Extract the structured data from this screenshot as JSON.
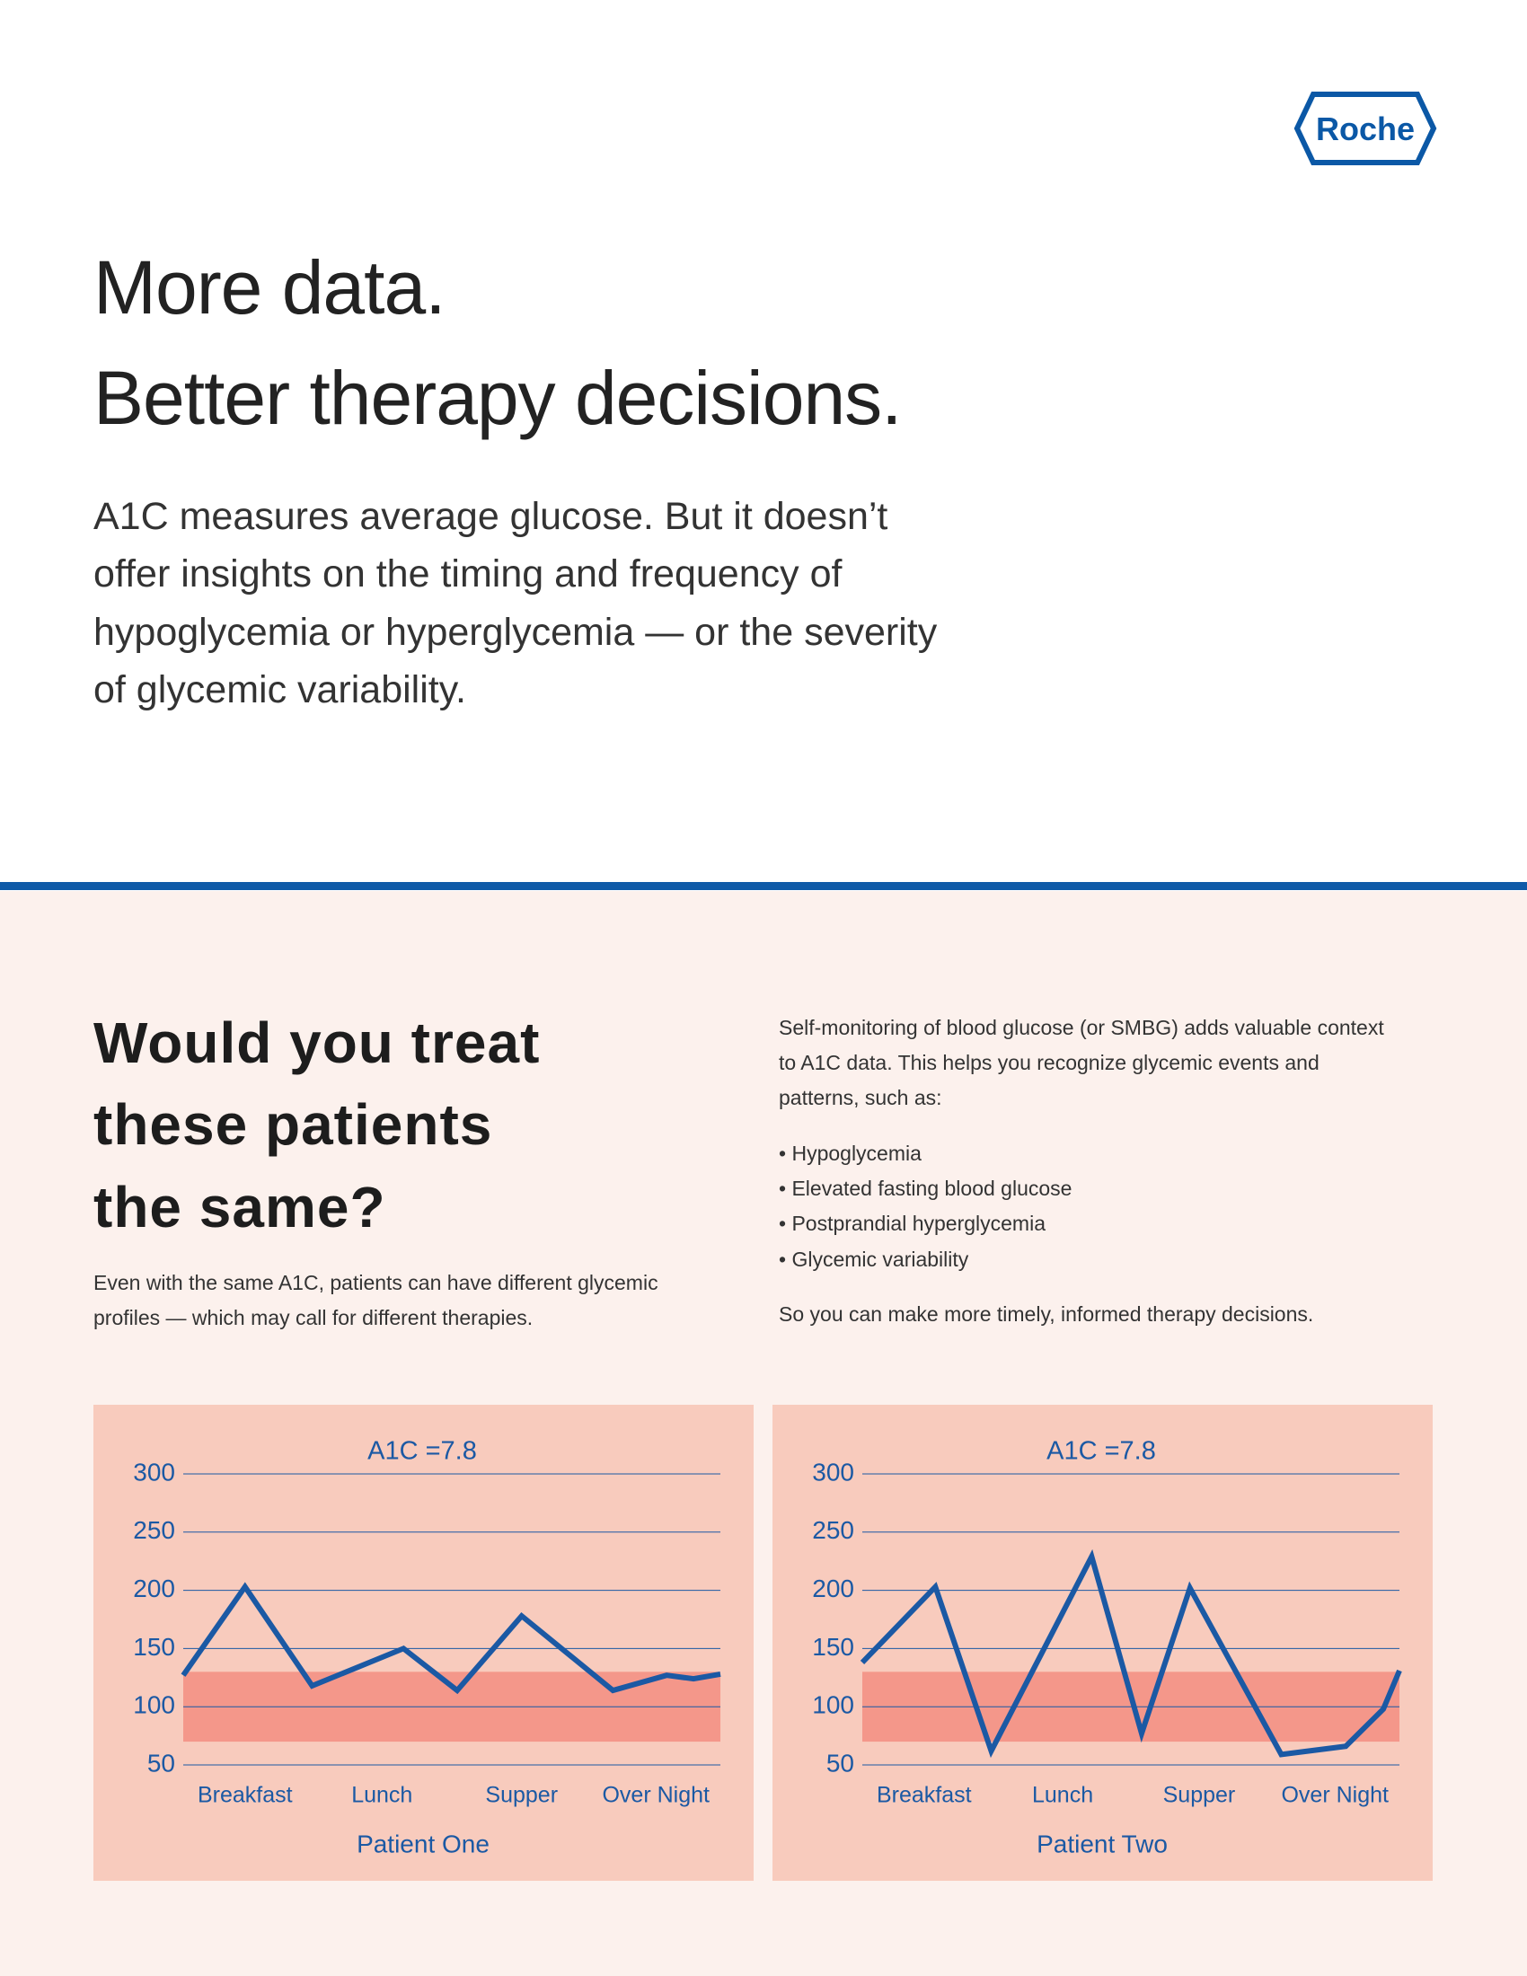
{
  "header": {
    "logo": "Roche",
    "title_lines": [
      "More data.",
      "Better therapy decisions."
    ],
    "intro_lines": [
      "A1C measures average glucose. But it doesn’t",
      "offer insights on the timing and frequency of",
      "hypoglycemia or hyperglycemia — or the severity",
      "of glycemic variability."
    ]
  },
  "section": {
    "heading_lines": [
      "Would you treat",
      "these patients",
      "the same?"
    ],
    "subtext_lines": [
      "Even with the same A1C, patients can have different glycemic",
      "profiles — which may call for different therapies."
    ],
    "context_lines": [
      "Self-monitoring of blood glucose (or SMBG) adds valuable context",
      "to A1C data. This helps you recognize glycemic events and",
      "patterns, such as:"
    ],
    "bullets": [
      "Hypoglycemia",
      "Elevated fasting blood glucose",
      "Postprandial hyperglycemia",
      "Glycemic variability"
    ],
    "closing": "So you can make more timely, informed therapy decisions."
  },
  "chart_data": [
    {
      "type": "line",
      "title": "A1C =7.8",
      "x_label": "Patient One",
      "x": [
        0,
        11.5,
        24,
        41,
        51,
        63,
        80,
        90,
        95,
        100
      ],
      "series": [
        {
          "color": "#1b59a4",
          "values": [
            127,
            203,
            118,
            150,
            114,
            178,
            114,
            127,
            124,
            128
          ]
        }
      ],
      "xlim": [
        0,
        100
      ],
      "xticks": [
        {
          "value": 11.5,
          "label": "Breakfast"
        },
        {
          "value": 37,
          "label": "Lunch"
        },
        {
          "value": 63,
          "label": "Supper"
        },
        {
          "value": 88,
          "label": "Over Night"
        }
      ],
      "ylim": [
        50,
        300
      ],
      "yticks": [
        50,
        100,
        150,
        200,
        250,
        300
      ],
      "grid": true,
      "target_range": [
        70,
        130
      ],
      "target_color": "#f4978a"
    },
    {
      "type": "line",
      "title": "A1C =7.8",
      "x_label": "Patient Two",
      "x": [
        0,
        13.6,
        24,
        42.7,
        52,
        61,
        78,
        90,
        97,
        100
      ],
      "series": [
        {
          "color": "#1b59a4",
          "values": [
            138,
            203,
            62,
            229,
            77,
            202,
            59,
            66,
            98,
            131
          ]
        }
      ],
      "xlim": [
        0,
        100
      ],
      "xticks": [
        {
          "value": 11.5,
          "label": "Breakfast"
        },
        {
          "value": 37.3,
          "label": "Lunch"
        },
        {
          "value": 62.7,
          "label": "Supper"
        },
        {
          "value": 88,
          "label": "Over Night"
        }
      ],
      "ylim": [
        50,
        300
      ],
      "yticks": [
        50,
        100,
        150,
        200,
        250,
        300
      ],
      "grid": true,
      "target_range": [
        70,
        130
      ],
      "target_color": "#f4978a"
    }
  ]
}
